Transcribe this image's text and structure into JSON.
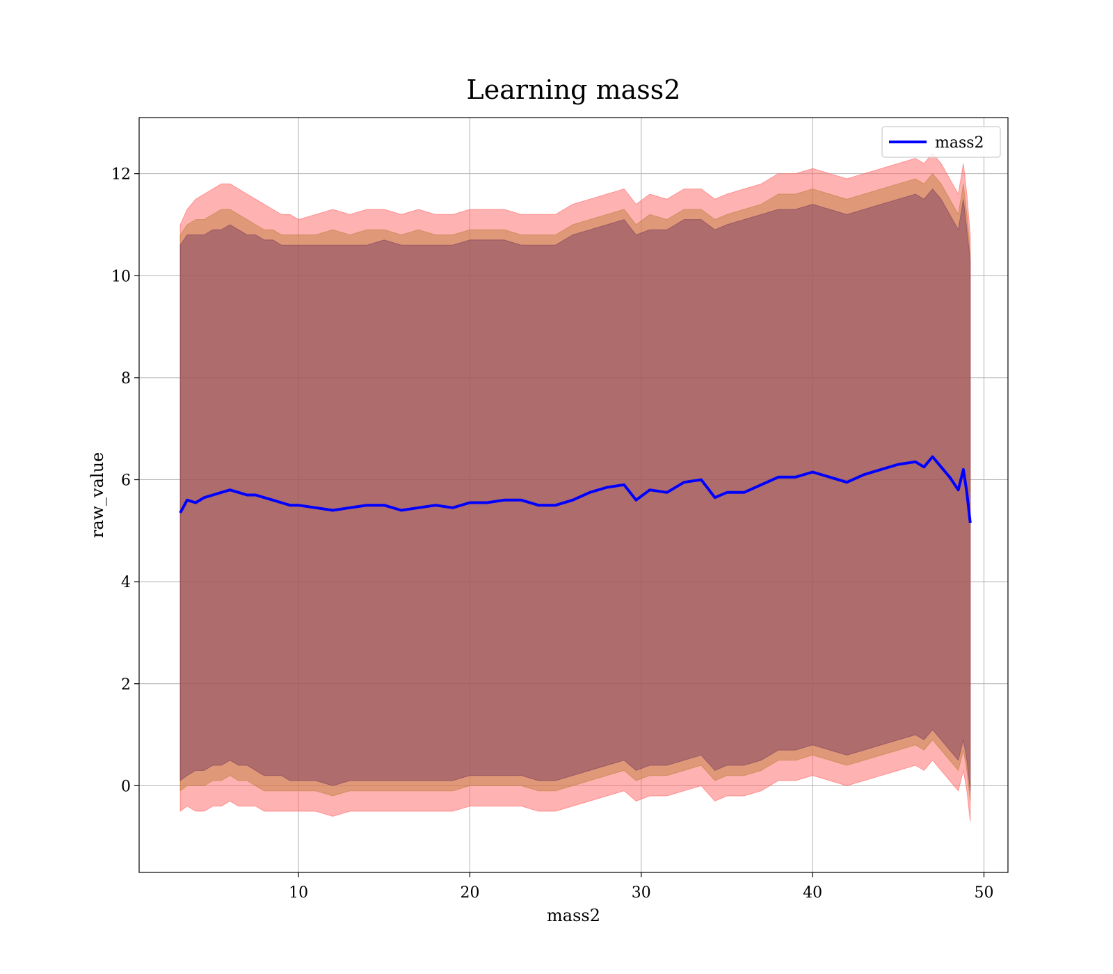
{
  "chart_data": {
    "type": "line",
    "title": "Learning mass2",
    "xlabel": "mass2",
    "ylabel": "raw_value",
    "xlim": [
      0.7,
      51.4
    ],
    "ylim": [
      -1.7,
      13.1
    ],
    "xticks": [
      10,
      20,
      30,
      40,
      50
    ],
    "yticks": [
      0,
      2,
      4,
      6,
      8,
      10,
      12
    ],
    "grid": true,
    "legend_position": "top-right",
    "series": [
      {
        "name": "mass2",
        "color": "#0000ff",
        "x": [
          3.1,
          3.5,
          4.0,
          4.5,
          5.0,
          5.5,
          6.0,
          6.5,
          7.0,
          7.5,
          8.0,
          8.5,
          9.0,
          9.5,
          10.0,
          11.0,
          12.0,
          13.0,
          14.0,
          15.0,
          16.0,
          17.0,
          18.0,
          19.0,
          20.0,
          21.0,
          22.0,
          23.0,
          24.0,
          25.0,
          26.0,
          27.0,
          28.0,
          29.0,
          29.7,
          30.5,
          31.5,
          32.5,
          33.5,
          34.3,
          35.0,
          36.0,
          37.0,
          38.0,
          39.0,
          40.0,
          41.0,
          42.0,
          43.0,
          44.0,
          45.0,
          46.0,
          46.5,
          47.0,
          47.5,
          48.0,
          48.5,
          48.8,
          49.0,
          49.2
        ],
        "values": [
          5.35,
          5.6,
          5.55,
          5.65,
          5.7,
          5.75,
          5.8,
          5.75,
          5.7,
          5.7,
          5.65,
          5.6,
          5.55,
          5.5,
          5.5,
          5.45,
          5.4,
          5.45,
          5.5,
          5.5,
          5.4,
          5.45,
          5.5,
          5.45,
          5.55,
          5.55,
          5.6,
          5.6,
          5.5,
          5.5,
          5.6,
          5.75,
          5.85,
          5.9,
          5.6,
          5.8,
          5.75,
          5.95,
          6.0,
          5.65,
          5.75,
          5.75,
          5.9,
          6.05,
          6.05,
          6.15,
          6.05,
          5.95,
          6.1,
          6.2,
          6.3,
          6.35,
          6.25,
          6.45,
          6.25,
          6.05,
          5.8,
          6.2,
          5.75,
          5.15
        ],
        "bands": [
          {
            "name": "band-outer",
            "color": "#ff6666",
            "upper": [
              11.0,
              11.3,
              11.5,
              11.6,
              11.7,
              11.8,
              11.8,
              11.7,
              11.6,
              11.5,
              11.4,
              11.3,
              11.2,
              11.2,
              11.1,
              11.2,
              11.3,
              11.2,
              11.3,
              11.3,
              11.2,
              11.3,
              11.2,
              11.2,
              11.3,
              11.3,
              11.3,
              11.2,
              11.2,
              11.2,
              11.4,
              11.5,
              11.6,
              11.7,
              11.4,
              11.6,
              11.5,
              11.7,
              11.7,
              11.5,
              11.6,
              11.7,
              11.8,
              12.0,
              12.0,
              12.1,
              12.0,
              11.9,
              12.0,
              12.1,
              12.2,
              12.3,
              12.2,
              12.4,
              12.2,
              11.9,
              11.6,
              12.2,
              11.6,
              10.8
            ],
            "lower": [
              -0.5,
              -0.4,
              -0.5,
              -0.5,
              -0.4,
              -0.4,
              -0.3,
              -0.4,
              -0.4,
              -0.4,
              -0.5,
              -0.5,
              -0.5,
              -0.5,
              -0.5,
              -0.5,
              -0.6,
              -0.5,
              -0.5,
              -0.5,
              -0.5,
              -0.5,
              -0.5,
              -0.5,
              -0.4,
              -0.4,
              -0.4,
              -0.4,
              -0.5,
              -0.5,
              -0.4,
              -0.3,
              -0.2,
              -0.1,
              -0.3,
              -0.2,
              -0.2,
              -0.1,
              0.0,
              -0.3,
              -0.2,
              -0.2,
              -0.1,
              0.1,
              0.1,
              0.2,
              0.1,
              0.0,
              0.1,
              0.2,
              0.3,
              0.4,
              0.3,
              0.5,
              0.3,
              0.1,
              -0.1,
              0.3,
              -0.1,
              -0.7
            ]
          },
          {
            "name": "band-middle",
            "color": "#bf7f3f",
            "upper": [
              10.8,
              11.0,
              11.1,
              11.1,
              11.2,
              11.3,
              11.3,
              11.2,
              11.1,
              11.0,
              10.9,
              10.9,
              10.8,
              10.8,
              10.8,
              10.8,
              10.9,
              10.8,
              10.9,
              10.9,
              10.8,
              10.9,
              10.8,
              10.8,
              10.9,
              10.9,
              10.9,
              10.8,
              10.8,
              10.8,
              11.0,
              11.1,
              11.2,
              11.3,
              11.0,
              11.2,
              11.1,
              11.3,
              11.3,
              11.1,
              11.2,
              11.3,
              11.4,
              11.6,
              11.6,
              11.7,
              11.6,
              11.5,
              11.6,
              11.7,
              11.8,
              11.9,
              11.8,
              12.0,
              11.8,
              11.5,
              11.2,
              11.8,
              11.2,
              10.5
            ],
            "lower": [
              -0.1,
              0.0,
              0.0,
              0.0,
              0.1,
              0.1,
              0.2,
              0.1,
              0.1,
              0.0,
              -0.1,
              -0.1,
              -0.1,
              -0.1,
              -0.1,
              -0.1,
              -0.2,
              -0.1,
              -0.1,
              -0.1,
              -0.1,
              -0.1,
              -0.1,
              -0.1,
              0.0,
              0.0,
              0.0,
              0.0,
              -0.1,
              -0.1,
              0.0,
              0.1,
              0.2,
              0.3,
              0.1,
              0.2,
              0.2,
              0.3,
              0.4,
              0.1,
              0.2,
              0.2,
              0.3,
              0.5,
              0.5,
              0.6,
              0.5,
              0.4,
              0.5,
              0.6,
              0.7,
              0.8,
              0.7,
              0.9,
              0.7,
              0.5,
              0.3,
              0.7,
              0.3,
              -0.3
            ]
          },
          {
            "name": "band-inner",
            "color": "#7f3f5f",
            "upper": [
              10.6,
              10.8,
              10.8,
              10.8,
              10.9,
              10.9,
              11.0,
              10.9,
              10.8,
              10.8,
              10.7,
              10.7,
              10.6,
              10.6,
              10.6,
              10.6,
              10.6,
              10.6,
              10.6,
              10.7,
              10.6,
              10.6,
              10.6,
              10.6,
              10.7,
              10.7,
              10.7,
              10.6,
              10.6,
              10.6,
              10.8,
              10.9,
              11.0,
              11.1,
              10.8,
              10.9,
              10.9,
              11.1,
              11.1,
              10.9,
              11.0,
              11.1,
              11.2,
              11.3,
              11.3,
              11.4,
              11.3,
              11.2,
              11.3,
              11.4,
              11.5,
              11.6,
              11.5,
              11.7,
              11.5,
              11.2,
              10.9,
              11.5,
              10.9,
              10.3
            ],
            "lower": [
              0.1,
              0.2,
              0.3,
              0.3,
              0.4,
              0.4,
              0.5,
              0.4,
              0.4,
              0.3,
              0.2,
              0.2,
              0.2,
              0.1,
              0.1,
              0.1,
              0.0,
              0.1,
              0.1,
              0.1,
              0.1,
              0.1,
              0.1,
              0.1,
              0.2,
              0.2,
              0.2,
              0.2,
              0.1,
              0.1,
              0.2,
              0.3,
              0.4,
              0.5,
              0.3,
              0.4,
              0.4,
              0.5,
              0.6,
              0.3,
              0.4,
              0.4,
              0.5,
              0.7,
              0.7,
              0.8,
              0.7,
              0.6,
              0.7,
              0.8,
              0.9,
              1.0,
              0.9,
              1.1,
              0.9,
              0.7,
              0.5,
              0.9,
              0.5,
              -0.1
            ]
          }
        ]
      }
    ]
  }
}
